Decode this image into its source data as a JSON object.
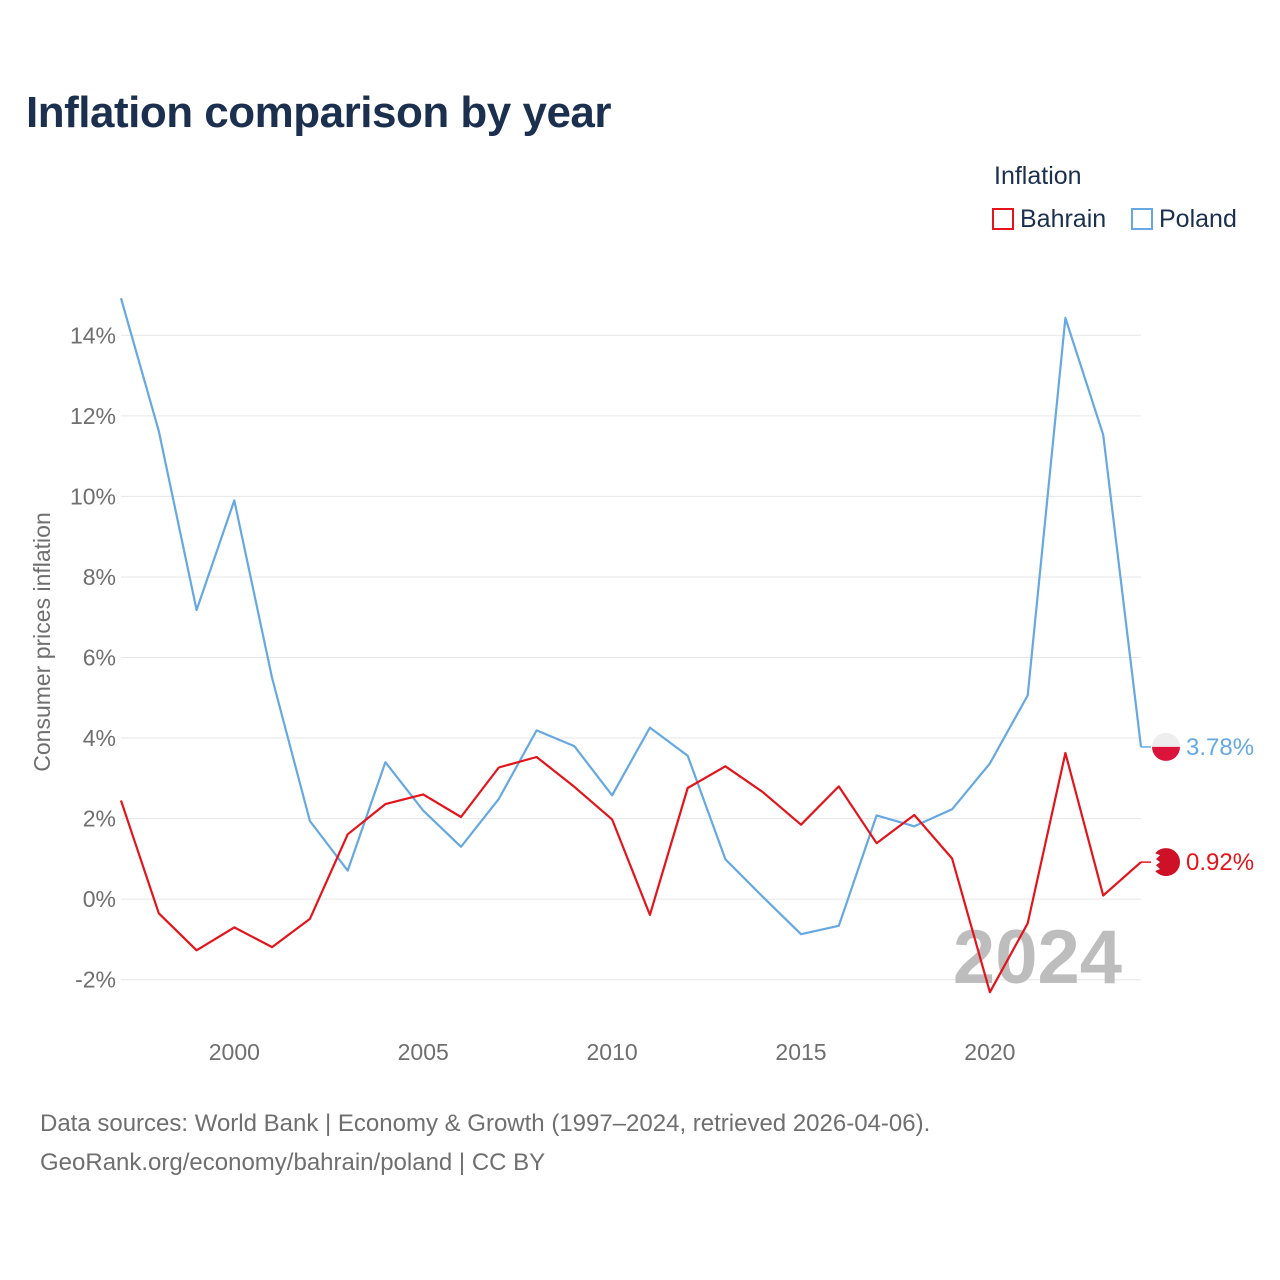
{
  "title": "Inflation comparison by year",
  "legend": {
    "title": "Inflation",
    "items": [
      {
        "label": "Bahrain",
        "color": "#e3141b"
      },
      {
        "label": "Poland",
        "color": "#65a8e2"
      }
    ]
  },
  "year_watermark": "2024",
  "source": {
    "line1": "Data sources: World Bank | Economy & Growth (1997–2024, retrieved 2026-04-06).",
    "line2": "GeoRank.org/economy/bahrain/poland | CC BY"
  },
  "chart_data": {
    "type": "line",
    "ylabel": "Consumer prices inflation",
    "xlabel": "",
    "xlim": [
      1997,
      2024
    ],
    "ylim": [
      -3,
      15
    ],
    "y_ticks": [
      -2,
      0,
      2,
      4,
      6,
      8,
      10,
      12,
      14
    ],
    "y_tick_labels": [
      "-2%",
      "0%",
      "2%",
      "4%",
      "6%",
      "8%",
      "10%",
      "12%",
      "14%"
    ],
    "x_ticks": [
      2000,
      2005,
      2010,
      2015,
      2020
    ],
    "x_tick_labels": [
      "2000",
      "2005",
      "2010",
      "2015",
      "2020"
    ],
    "grid": true,
    "x": [
      1997,
      1998,
      1999,
      2000,
      2001,
      2002,
      2003,
      2004,
      2005,
      2006,
      2007,
      2008,
      2009,
      2010,
      2011,
      2012,
      2013,
      2014,
      2015,
      2016,
      2017,
      2018,
      2019,
      2020,
      2021,
      2022,
      2023,
      2024
    ],
    "series": [
      {
        "name": "Bahrain",
        "color": "#e3141b",
        "end_label": "0.92%",
        "values": [
          2.45,
          -0.35,
          -1.27,
          -0.7,
          -1.19,
          -0.49,
          1.61,
          2.36,
          2.6,
          2.04,
          3.27,
          3.53,
          2.79,
          1.98,
          -0.39,
          2.76,
          3.3,
          2.65,
          1.85,
          2.8,
          1.39,
          2.09,
          1.01,
          -2.31,
          -0.6,
          3.63,
          0.09,
          0.92
        ]
      },
      {
        "name": "Poland",
        "color": "#65a8e2",
        "end_label": "3.78%",
        "values": [
          14.92,
          11.62,
          7.18,
          9.9,
          5.49,
          1.94,
          0.71,
          3.4,
          2.2,
          1.3,
          2.49,
          4.19,
          3.8,
          2.58,
          4.26,
          3.56,
          0.99,
          0.05,
          -0.87,
          -0.66,
          2.08,
          1.81,
          2.23,
          3.37,
          5.06,
          14.43,
          11.53,
          3.78
        ]
      }
    ]
  }
}
